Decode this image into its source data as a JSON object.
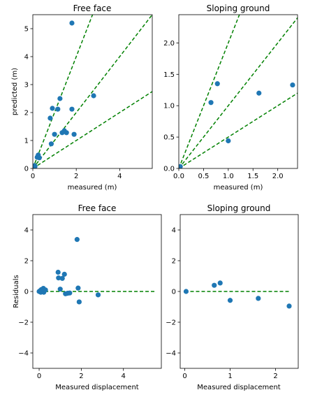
{
  "chart_data": [
    {
      "type": "scatter",
      "title": "Free face",
      "xlabel": "measured (m)",
      "ylabel": "predicted (m)",
      "xlim": [
        0,
        5.5
      ],
      "ylim": [
        0,
        5.5
      ],
      "xticks": [
        0,
        2,
        4
      ],
      "yticks": [
        0,
        1,
        2,
        3,
        4,
        5
      ],
      "marker_color": "#1f77b4",
      "line_color": "#008000",
      "lines": [
        {
          "slope": 2
        },
        {
          "slope": 1
        },
        {
          "slope": 0.5
        }
      ],
      "points": [
        [
          1.8,
          5.2
        ],
        [
          0.05,
          0.05
        ],
        [
          0.08,
          0.1
        ],
        [
          0.1,
          0.07
        ],
        [
          0.2,
          0.4
        ],
        [
          0.25,
          0.48
        ],
        [
          0.3,
          0.38
        ],
        [
          0.8,
          1.8
        ],
        [
          0.85,
          0.88
        ],
        [
          0.9,
          2.15
        ],
        [
          1.0,
          1.22
        ],
        [
          1.15,
          2.12
        ],
        [
          1.25,
          2.5
        ],
        [
          1.35,
          1.28
        ],
        [
          1.45,
          1.35
        ],
        [
          1.55,
          1.28
        ],
        [
          1.8,
          2.12
        ],
        [
          1.9,
          1.22
        ],
        [
          2.8,
          2.6
        ]
      ]
    },
    {
      "type": "scatter",
      "title": "Sloping ground",
      "xlabel": "measured (m)",
      "ylabel": "",
      "xlim": [
        0,
        2.4
      ],
      "ylim": [
        0,
        2.45
      ],
      "xticks": [
        0.0,
        0.5,
        1.0,
        1.5,
        2.0
      ],
      "yticks": [
        0.0,
        0.5,
        1.0,
        1.5,
        2.0
      ],
      "marker_color": "#1f77b4",
      "line_color": "#008000",
      "lines": [
        {
          "slope": 2
        },
        {
          "slope": 1
        },
        {
          "slope": 0.5
        }
      ],
      "points": [
        [
          0.03,
          0.03
        ],
        [
          0.65,
          1.05
        ],
        [
          0.78,
          1.35
        ],
        [
          1.0,
          0.44
        ],
        [
          1.62,
          1.2
        ],
        [
          2.3,
          1.33
        ]
      ]
    },
    {
      "type": "scatter",
      "title": "Free face",
      "xlabel": "Measured displacement",
      "ylabel": "Residuals",
      "xlim": [
        -0.3,
        5.8
      ],
      "ylim": [
        -5,
        5
      ],
      "xticks": [
        0,
        2,
        4
      ],
      "yticks": [
        -4,
        -2,
        0,
        2,
        4
      ],
      "marker_color": "#1f77b4",
      "line_color": "#008000",
      "hline": {
        "y": 0,
        "x0": 0,
        "x1": 5.5
      },
      "points": [
        [
          0.0,
          0.0
        ],
        [
          0.05,
          0.05
        ],
        [
          0.08,
          -0.05
        ],
        [
          0.1,
          0.12
        ],
        [
          0.2,
          0.2
        ],
        [
          0.22,
          -0.05
        ],
        [
          0.25,
          0.1
        ],
        [
          0.3,
          0.1
        ],
        [
          0.9,
          1.25
        ],
        [
          0.92,
          0.88
        ],
        [
          1.0,
          0.15
        ],
        [
          1.1,
          0.85
        ],
        [
          1.2,
          1.12
        ],
        [
          1.25,
          -0.15
        ],
        [
          1.35,
          -0.12
        ],
        [
          1.45,
          -0.1
        ],
        [
          1.8,
          3.38
        ],
        [
          1.85,
          0.22
        ],
        [
          1.9,
          -0.68
        ],
        [
          2.8,
          -0.22
        ]
      ]
    },
    {
      "type": "scatter",
      "title": "Sloping ground",
      "xlabel": "Measured displacement",
      "ylabel": "",
      "xlim": [
        -0.1,
        2.5
      ],
      "ylim": [
        -5,
        5
      ],
      "xticks": [
        0,
        1,
        2
      ],
      "yticks": [
        -4,
        -2,
        0,
        2,
        4
      ],
      "marker_color": "#1f77b4",
      "line_color": "#008000",
      "hline": {
        "y": 0,
        "x0": 0,
        "x1": 2.3
      },
      "points": [
        [
          0.03,
          0.0
        ],
        [
          0.65,
          0.4
        ],
        [
          0.78,
          0.55
        ],
        [
          1.0,
          -0.58
        ],
        [
          1.62,
          -0.45
        ],
        [
          2.3,
          -0.95
        ]
      ]
    }
  ]
}
